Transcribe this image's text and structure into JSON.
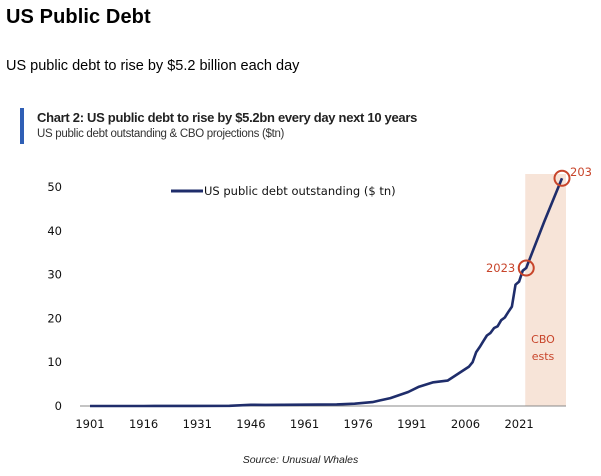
{
  "page": {
    "title": "US Public Debt",
    "subtitle": "US public debt to rise by $5.2 billion each day",
    "source": "Source: Unusual Whales"
  },
  "chart_data": {
    "type": "line",
    "title": "Chart 2: US public debt to rise by $5.2bn every day next 10 years",
    "subtitle": "US public debt outstanding & CBO projections ($tn)",
    "xlabel": "",
    "ylabel": "",
    "xlim": [
      1901,
      2033
    ],
    "ylim": [
      0,
      50
    ],
    "x_ticks": [
      "1901",
      "1916",
      "1931",
      "1946",
      "1961",
      "1976",
      "1991",
      "2006",
      "2021"
    ],
    "y_ticks": [
      "0",
      "10",
      "20",
      "30",
      "40",
      "50"
    ],
    "grid": false,
    "legend": "top-left",
    "series": [
      {
        "name": "US public debt outstanding ($ tn)",
        "color": "#1f2d6b",
        "x": [
          1901,
          1910,
          1916,
          1919,
          1930,
          1940,
          1946,
          1950,
          1960,
          1970,
          1975,
          1980,
          1985,
          1990,
          1993,
          1997,
          2001,
          2004,
          2007,
          2008,
          2009,
          2010,
          2011,
          2012,
          2013,
          2014,
          2015,
          2016,
          2017,
          2018,
          2019,
          2020,
          2021,
          2022,
          2023,
          2028,
          2033
        ],
        "values": [
          0,
          0.01,
          0.01,
          0.03,
          0.02,
          0.05,
          0.27,
          0.26,
          0.29,
          0.37,
          0.53,
          0.9,
          1.8,
          3.2,
          4.4,
          5.4,
          5.8,
          7.4,
          9.0,
          10.0,
          12.3,
          13.5,
          14.8,
          16.1,
          16.7,
          17.8,
          18.2,
          19.6,
          20.2,
          21.5,
          22.7,
          27.7,
          28.4,
          30.9,
          31.5,
          42.0,
          52.0
        ]
      }
    ],
    "annotations": [
      {
        "x": 2023,
        "y": 31.5,
        "label": "2023",
        "marker": "circle",
        "color": "#c8452b"
      },
      {
        "x": 2033,
        "y": 52,
        "label": "203",
        "marker": "circle",
        "color": "#c8452b"
      }
    ],
    "shaded_region": {
      "x_start": 2023,
      "x_end": 2033,
      "label_lines": [
        "CBO",
        "ests"
      ],
      "color": "#f7e4d8",
      "label_color": "#c8452b"
    }
  }
}
